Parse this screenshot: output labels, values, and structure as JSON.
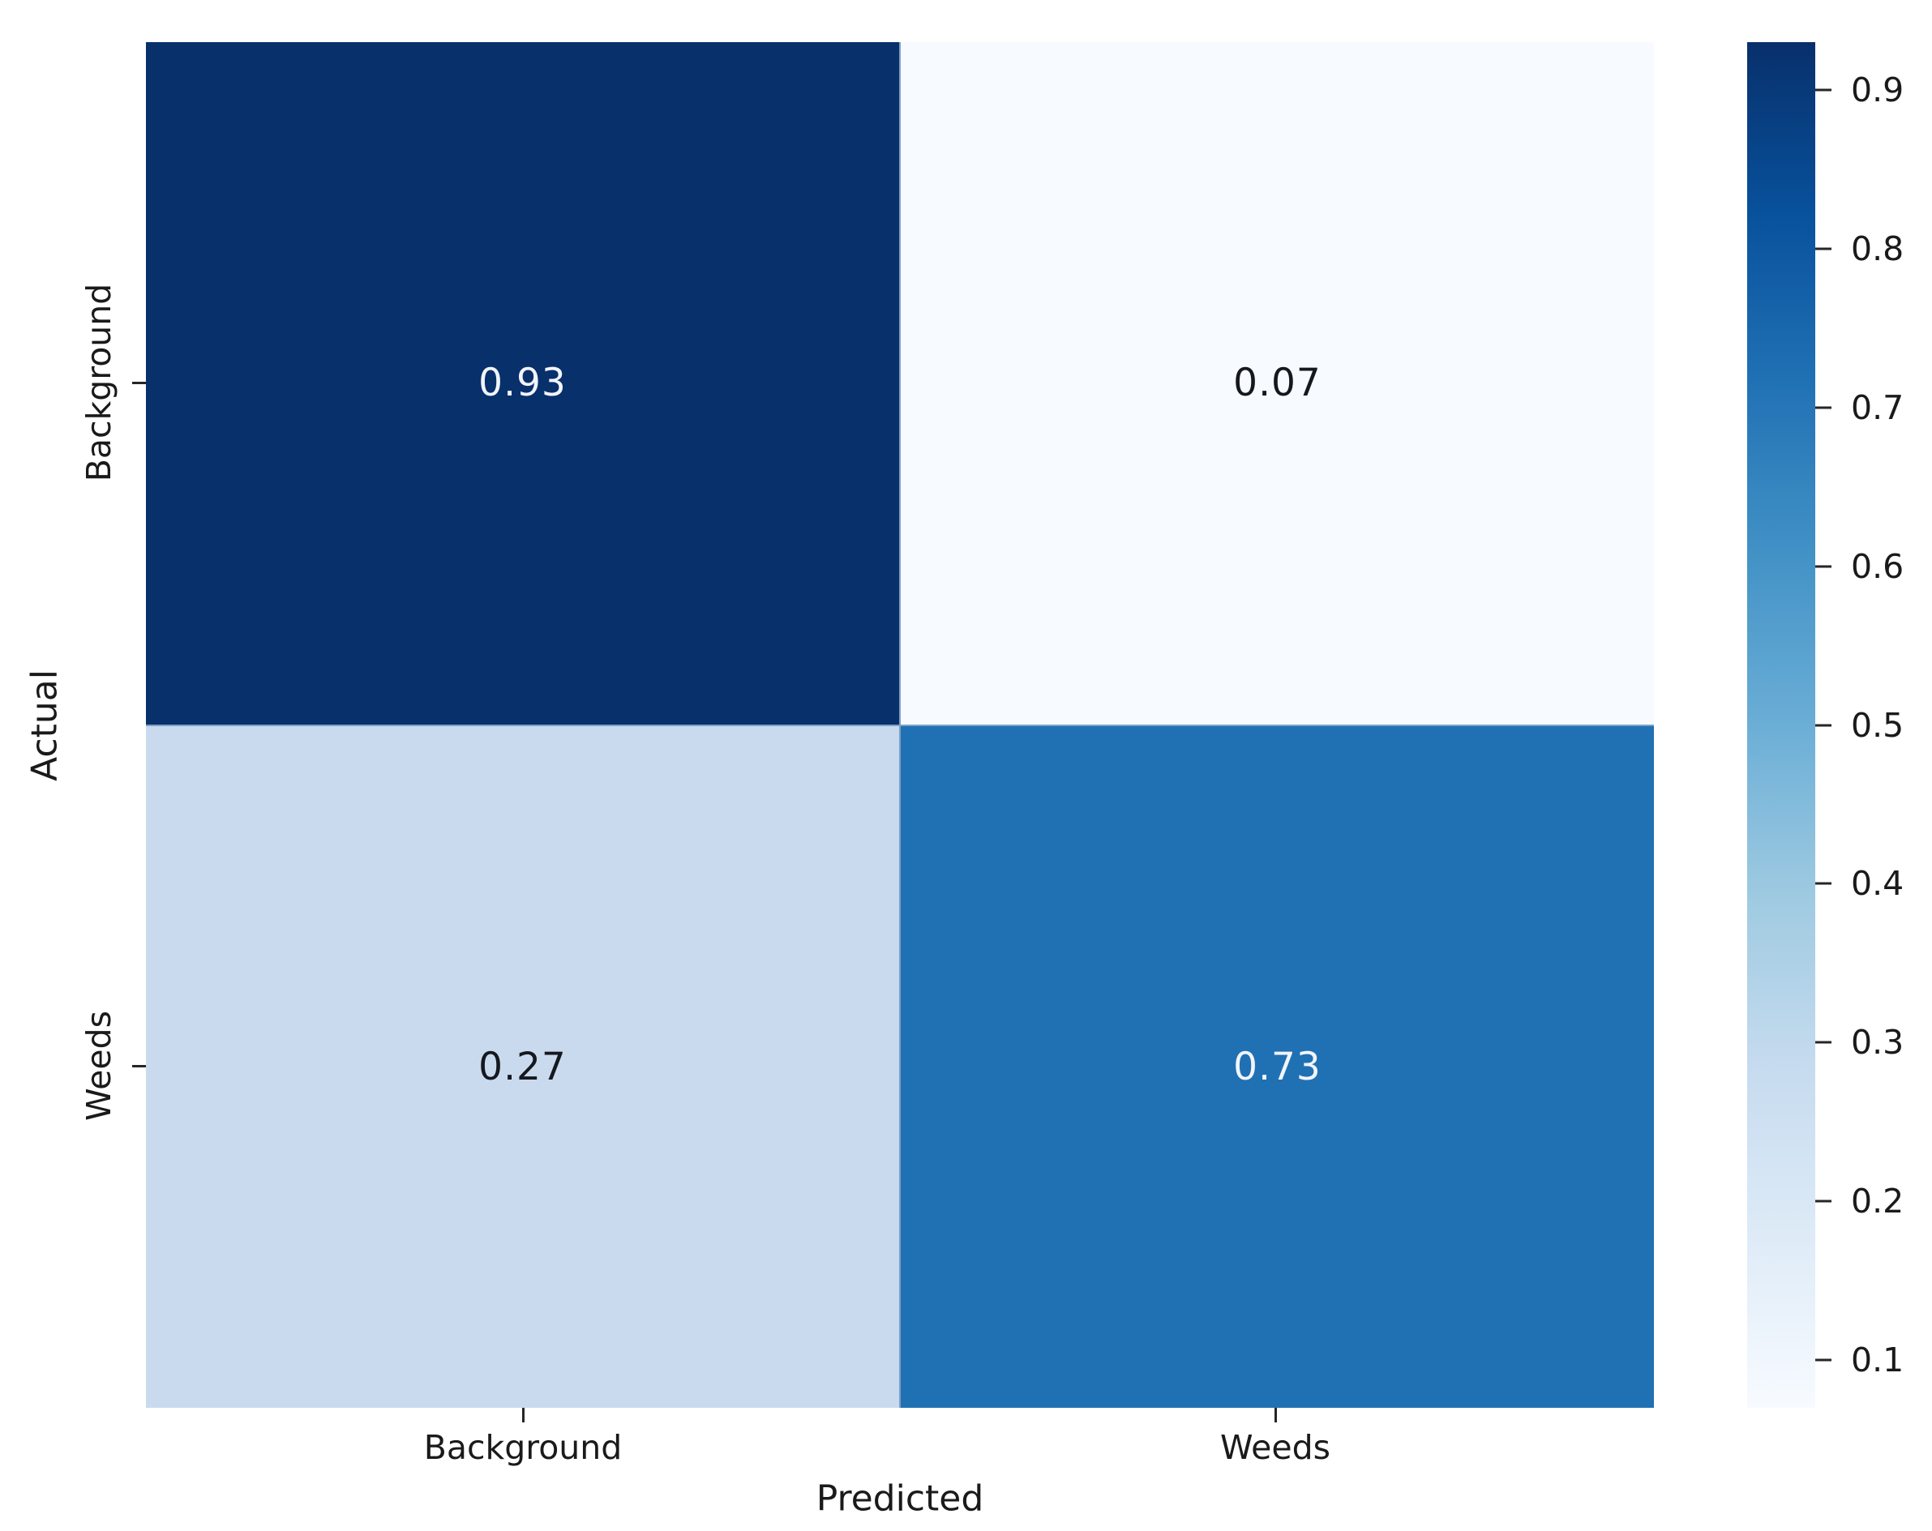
{
  "chart_data": {
    "type": "heatmap",
    "title": "",
    "xlabel": "Predicted",
    "ylabel": "Actual",
    "x_categories": [
      "Background",
      "Weeds"
    ],
    "y_categories": [
      "Background",
      "Weeds"
    ],
    "values": [
      [
        0.93,
        0.07
      ],
      [
        0.27,
        0.73
      ]
    ],
    "cell_labels": [
      [
        "0.93",
        "0.07"
      ],
      [
        "0.27",
        "0.73"
      ]
    ],
    "cell_colors": [
      [
        "#08306b",
        "#f7fbff"
      ],
      [
        "#c9daee",
        "#2070b4"
      ]
    ],
    "cell_text_colors": [
      [
        "#f2f5fa",
        "#15181e"
      ],
      [
        "#15181e",
        "#f2f5fa"
      ]
    ],
    "colormap": "Blues",
    "colormap_stops": [
      "#f7fbff",
      "#deebf7",
      "#c6dbef",
      "#9ecae1",
      "#6baed6",
      "#4292c6",
      "#2171b5",
      "#08519c",
      "#08306b"
    ],
    "vmin": 0.07,
    "vmax": 0.93,
    "colorbar_ticks": [
      "0.9",
      "0.8",
      "0.7",
      "0.6",
      "0.5",
      "0.4",
      "0.3",
      "0.2",
      "0.1"
    ],
    "legend_position": "right-colorbar",
    "grid": false
  }
}
